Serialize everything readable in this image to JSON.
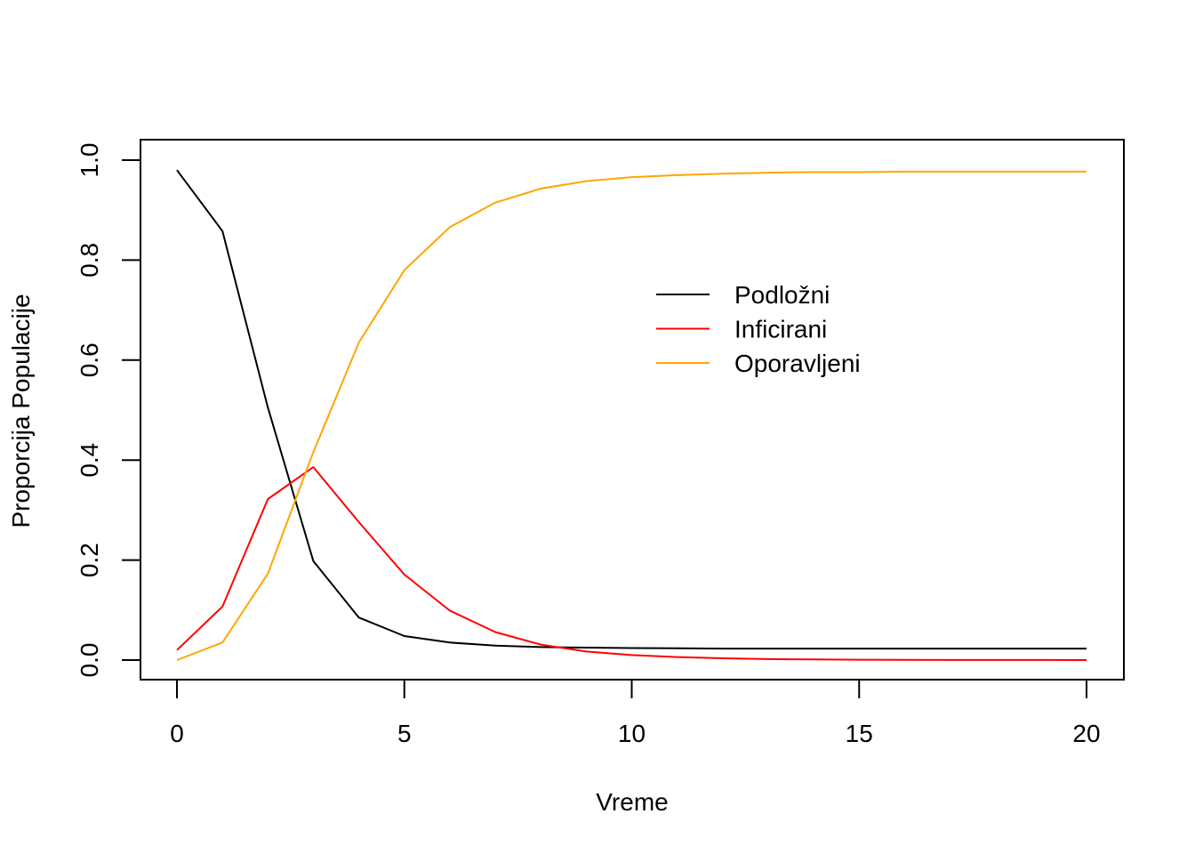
{
  "chart_data": {
    "type": "line",
    "title": "",
    "xlabel": "Vreme",
    "ylabel": "Proporcija Populacije",
    "xlim": [
      0,
      20
    ],
    "ylim": [
      0,
      1
    ],
    "x_ticks": [
      0,
      5,
      10,
      15,
      20
    ],
    "y_ticks": [
      0.0,
      0.2,
      0.4,
      0.6,
      0.8,
      1.0
    ],
    "y_tick_labels": [
      "0.0",
      "0.2",
      "0.4",
      "0.6",
      "0.8",
      "1.0"
    ],
    "grid": false,
    "legend_position": "top-right",
    "x": [
      0,
      1,
      2,
      3,
      4,
      5,
      6,
      7,
      8,
      9,
      10,
      11,
      12,
      13,
      14,
      15,
      16,
      17,
      18,
      19,
      20
    ],
    "series": [
      {
        "name": "Podložni",
        "color": "#000000",
        "values": [
          0.98,
          0.858,
          0.505,
          0.198,
          0.085,
          0.048,
          0.035,
          0.029,
          0.026,
          0.025,
          0.024,
          0.0235,
          0.023,
          0.023,
          0.023,
          0.023,
          0.023,
          0.023,
          0.023,
          0.023,
          0.023
        ]
      },
      {
        "name": "Inficirani",
        "color": "#ff0000",
        "values": [
          0.02,
          0.107,
          0.322,
          0.386,
          0.276,
          0.171,
          0.099,
          0.056,
          0.031,
          0.017,
          0.01,
          0.006,
          0.0035,
          0.002,
          0.0012,
          0.0007,
          0.0004,
          0.0002,
          0.0001,
          0.0001,
          0.0
        ]
      },
      {
        "name": "Oporavljeni",
        "color": "#ffa500",
        "values": [
          0.0,
          0.035,
          0.173,
          0.416,
          0.635,
          0.78,
          0.866,
          0.915,
          0.943,
          0.958,
          0.966,
          0.97,
          0.973,
          0.975,
          0.976,
          0.976,
          0.977,
          0.977,
          0.977,
          0.977,
          0.977
        ]
      }
    ]
  }
}
